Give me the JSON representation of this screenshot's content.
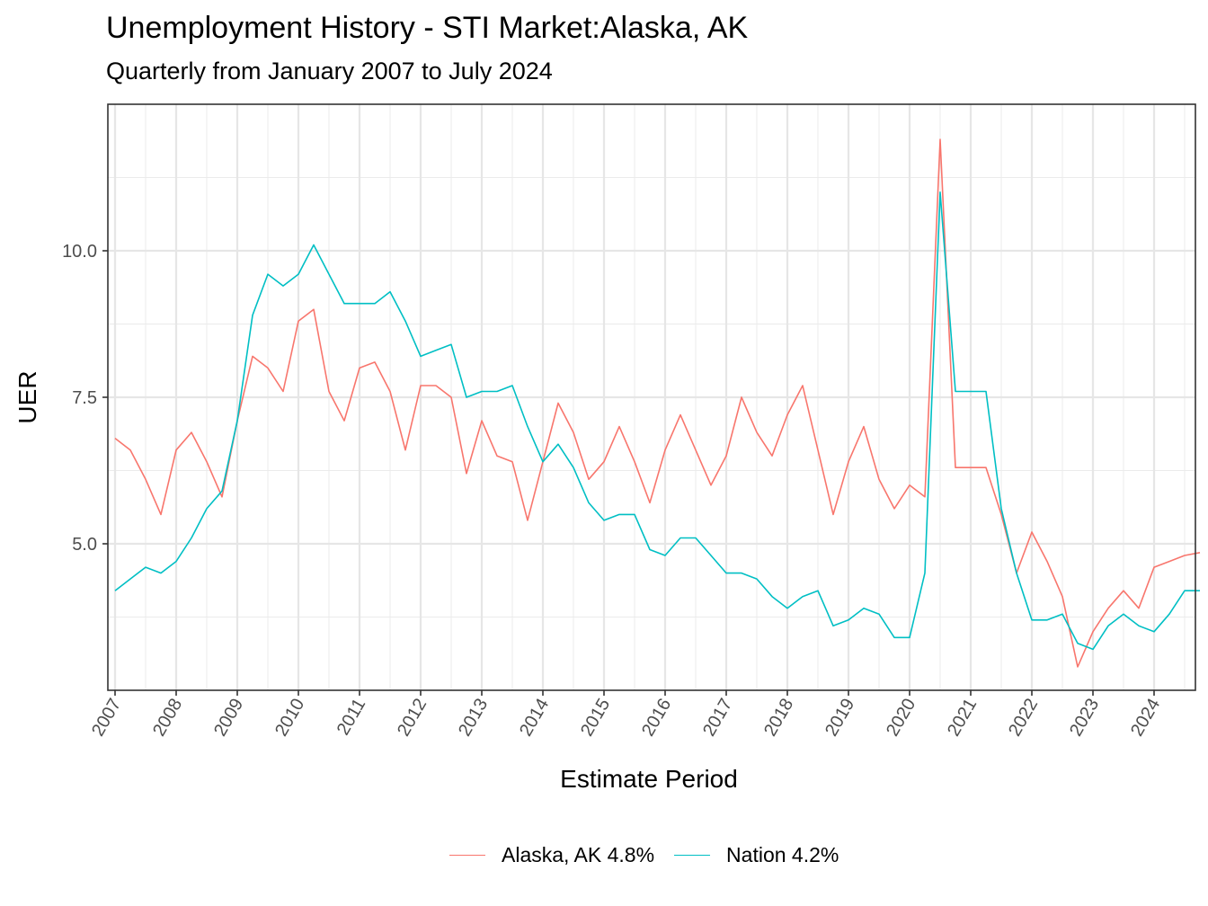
{
  "chart_data": {
    "type": "line",
    "title": "Unemployment History - STI Market:Alaska, AK",
    "subtitle": "Quarterly from January 2007 to July 2024",
    "xlabel": "Estimate Period",
    "ylabel": "UER",
    "x_start": "2007-01",
    "x_step": "quarter",
    "x_ticks": [
      "2007",
      "2008",
      "2009",
      "2010",
      "2011",
      "2012",
      "2013",
      "2014",
      "2015",
      "2016",
      "2017",
      "2018",
      "2019",
      "2020",
      "2021",
      "2022",
      "2023",
      "2024"
    ],
    "y_ticks": [
      "5.0",
      "7.5",
      "10.0"
    ],
    "ylim": [
      2.5,
      12.5
    ],
    "grid": true,
    "legend_position": "bottom",
    "series": [
      {
        "name": "Alaska, AK 4.8%",
        "color": "#F8766D",
        "values": [
          6.8,
          6.6,
          6.1,
          5.5,
          6.6,
          6.9,
          6.4,
          5.8,
          7.1,
          8.2,
          8.0,
          7.6,
          8.8,
          9.0,
          7.6,
          7.1,
          8.0,
          8.1,
          7.6,
          6.6,
          7.7,
          7.7,
          7.5,
          6.2,
          7.1,
          6.5,
          6.4,
          5.4,
          6.4,
          7.4,
          6.9,
          6.1,
          6.4,
          7.0,
          6.4,
          5.7,
          6.6,
          7.2,
          6.6,
          6.0,
          6.5,
          7.5,
          6.9,
          6.5,
          7.2,
          7.7,
          6.6,
          5.5,
          6.4,
          7.0,
          6.1,
          5.6,
          6.0,
          5.8,
          11.9,
          6.3,
          6.3,
          6.3,
          5.5,
          4.5,
          5.2,
          4.7,
          4.1,
          2.9,
          3.5,
          3.9,
          4.2,
          3.9,
          4.6,
          4.7,
          4.8,
          4.85
        ]
      },
      {
        "name": "Nation 4.2%",
        "color": "#00BFC4",
        "values": [
          4.2,
          4.4,
          4.6,
          4.5,
          4.7,
          5.1,
          5.6,
          5.9,
          7.1,
          8.9,
          9.6,
          9.4,
          9.6,
          10.1,
          9.6,
          9.1,
          9.1,
          9.1,
          9.3,
          8.8,
          8.2,
          8.3,
          8.4,
          7.5,
          7.6,
          7.6,
          7.7,
          7.0,
          6.4,
          6.7,
          6.3,
          5.7,
          5.4,
          5.5,
          5.5,
          4.9,
          4.8,
          5.1,
          5.1,
          4.8,
          4.5,
          4.5,
          4.4,
          4.1,
          3.9,
          4.1,
          4.2,
          3.6,
          3.7,
          3.9,
          3.8,
          3.4,
          3.4,
          4.5,
          11.0,
          7.6,
          7.6,
          7.6,
          5.6,
          4.5,
          3.7,
          3.7,
          3.8,
          3.3,
          3.2,
          3.6,
          3.8,
          3.6,
          3.5,
          3.8,
          4.2,
          4.2
        ]
      }
    ]
  }
}
